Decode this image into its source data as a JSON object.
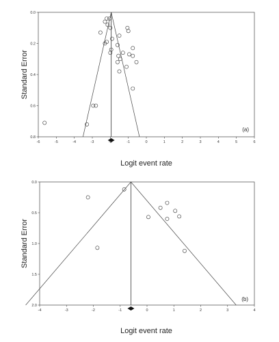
{
  "chart_data": [
    {
      "type": "scatter",
      "panel_label": "(a)",
      "title": "",
      "xlabel": "Logit event rate",
      "ylabel": "Standard Error",
      "xlim": [
        -6,
        6
      ],
      "ylim": [
        0.8,
        0.0
      ],
      "y_reversed": true,
      "x_ticks": [
        -6,
        -5,
        -4,
        -3,
        -2,
        -1,
        0,
        1,
        2,
        3,
        4,
        5,
        6
      ],
      "y_ticks": [
        0.0,
        0.2,
        0.4,
        0.6,
        0.8
      ],
      "y_tick_labels": [
        "0.0",
        "0.2",
        "0.4",
        "0.6",
        "0.8"
      ],
      "summary_effect": -1.95,
      "funnel_z": 1.96,
      "grid": false,
      "legend": "none",
      "points": [
        {
          "x": -2.2,
          "y": 0.04
        },
        {
          "x": -2.3,
          "y": 0.06
        },
        {
          "x": -2.05,
          "y": 0.04
        },
        {
          "x": -2.15,
          "y": 0.08
        },
        {
          "x": -2.55,
          "y": 0.13
        },
        {
          "x": -2.0,
          "y": 0.1
        },
        {
          "x": -1.05,
          "y": 0.1
        },
        {
          "x": -1.0,
          "y": 0.12
        },
        {
          "x": -1.5,
          "y": 0.15
        },
        {
          "x": -1.9,
          "y": 0.17
        },
        {
          "x": -2.2,
          "y": 0.19
        },
        {
          "x": -2.3,
          "y": 0.2
        },
        {
          "x": -1.6,
          "y": 0.21
        },
        {
          "x": -0.75,
          "y": 0.23
        },
        {
          "x": -1.95,
          "y": 0.24
        },
        {
          "x": -2.0,
          "y": 0.26
        },
        {
          "x": -1.3,
          "y": 0.26
        },
        {
          "x": -1.55,
          "y": 0.28
        },
        {
          "x": -0.95,
          "y": 0.27
        },
        {
          "x": -0.75,
          "y": 0.28
        },
        {
          "x": -1.45,
          "y": 0.3
        },
        {
          "x": -1.6,
          "y": 0.32
        },
        {
          "x": -0.55,
          "y": 0.32
        },
        {
          "x": -1.1,
          "y": 0.35
        },
        {
          "x": -1.5,
          "y": 0.38
        },
        {
          "x": -0.75,
          "y": 0.49
        },
        {
          "x": -2.95,
          "y": 0.6
        },
        {
          "x": -2.8,
          "y": 0.6
        },
        {
          "x": -3.3,
          "y": 0.72
        },
        {
          "x": -5.65,
          "y": 0.71
        }
      ]
    },
    {
      "type": "scatter",
      "panel_label": "(b)",
      "title": "",
      "xlabel": "Logit event rate",
      "ylabel": "Standard Error",
      "xlim": [
        -4,
        4
      ],
      "ylim": [
        2.0,
        0.0
      ],
      "y_reversed": true,
      "x_ticks": [
        -4,
        -3,
        -2,
        -1,
        0,
        1,
        2,
        3,
        4
      ],
      "y_ticks": [
        0.0,
        0.5,
        1.0,
        1.5,
        2.0
      ],
      "y_tick_labels": [
        "0.0",
        "0.5",
        "1.0",
        "1.5",
        "2.0"
      ],
      "summary_effect": -0.6,
      "funnel_z": 1.96,
      "grid": false,
      "legend": "none",
      "points": [
        {
          "x": -2.2,
          "y": 0.25
        },
        {
          "x": -0.85,
          "y": 0.12
        },
        {
          "x": -1.85,
          "y": 1.07
        },
        {
          "x": 0.05,
          "y": 0.57
        },
        {
          "x": 0.5,
          "y": 0.42
        },
        {
          "x": 0.75,
          "y": 0.34
        },
        {
          "x": 1.05,
          "y": 0.47
        },
        {
          "x": 1.2,
          "y": 0.56
        },
        {
          "x": 0.75,
          "y": 0.6
        },
        {
          "x": 1.4,
          "y": 1.12
        }
      ]
    }
  ]
}
